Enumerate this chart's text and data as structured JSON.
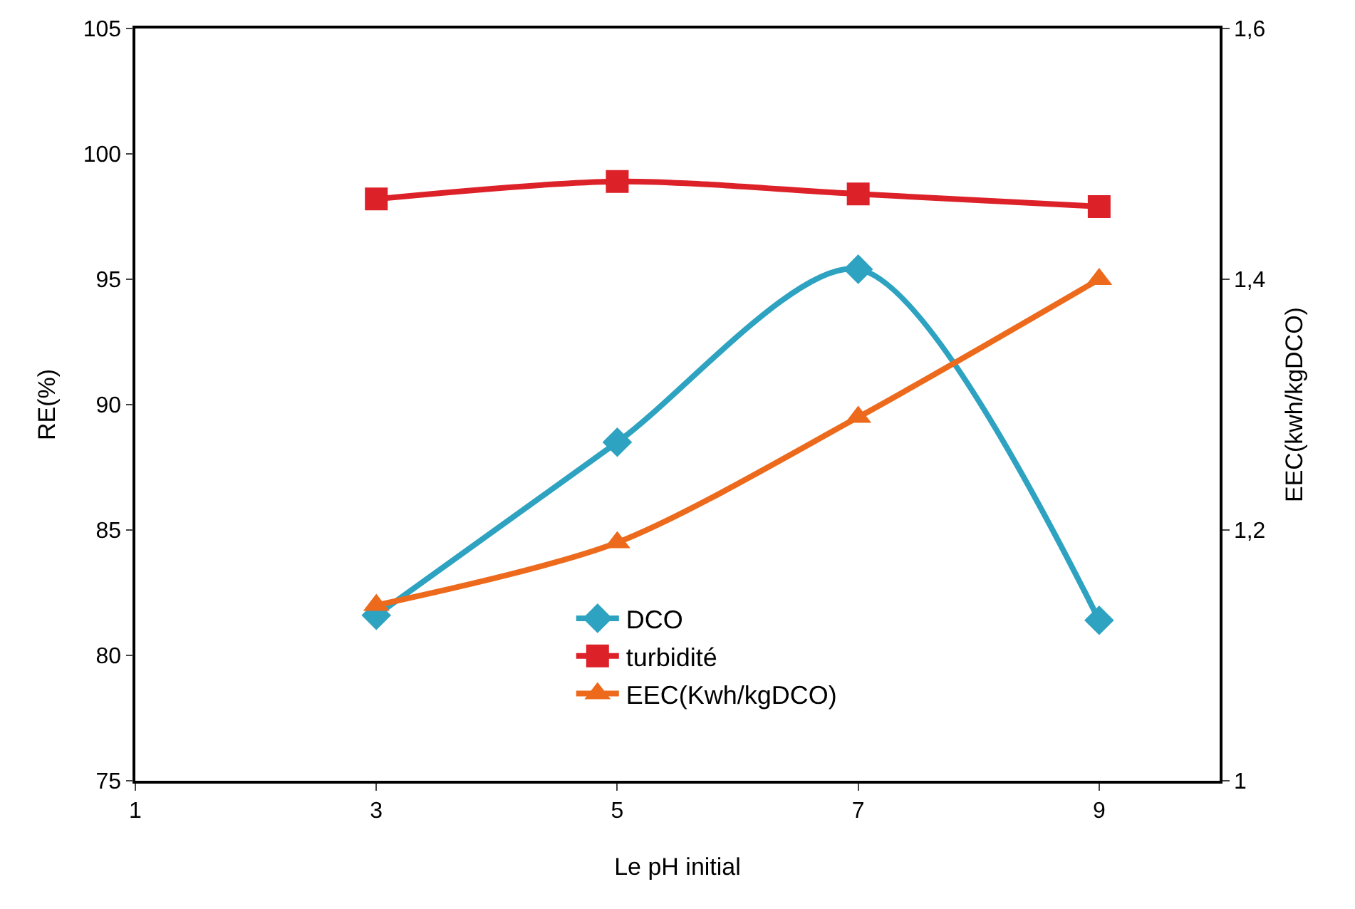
{
  "chart_data": {
    "type": "line",
    "xlabel": "Le pH initial",
    "ylabel": "RE(%)",
    "y2label": "EEC(kwh/kgDCO)",
    "x": [
      3,
      5,
      7,
      9
    ],
    "series": [
      {
        "name": "DCO",
        "color": "#2ea3c1",
        "values": [
          81.6,
          88.5,
          95.4,
          81.4
        ],
        "marker": "diamond"
      },
      {
        "name": "turbidité",
        "color": "#dc2129",
        "values": [
          98.2,
          98.9,
          98.4,
          97.9
        ],
        "marker": "square"
      },
      {
        "name": "EEC(Kwh/kgDCO)",
        "color": "#ed6a1c",
        "values": [
          1.14,
          1.19,
          1.29,
          1.4
        ],
        "marker": "triangle",
        "axis": "y2"
      }
    ],
    "xlim": [
      1,
      10
    ],
    "xticks": [
      1,
      3,
      5,
      7,
      9
    ],
    "ylim": [
      75,
      105
    ],
    "yticks": [
      75,
      80,
      85,
      90,
      95,
      100,
      105
    ],
    "y2lim": [
      1,
      1.6
    ],
    "y2ticks": [
      1,
      {
        "value": 1.2,
        "label": "1,2"
      },
      {
        "value": 1.4,
        "label": "1,4"
      },
      {
        "value": 1.6,
        "label": "1,6"
      }
    ],
    "legend": "bottom",
    "line_style": "solid"
  }
}
